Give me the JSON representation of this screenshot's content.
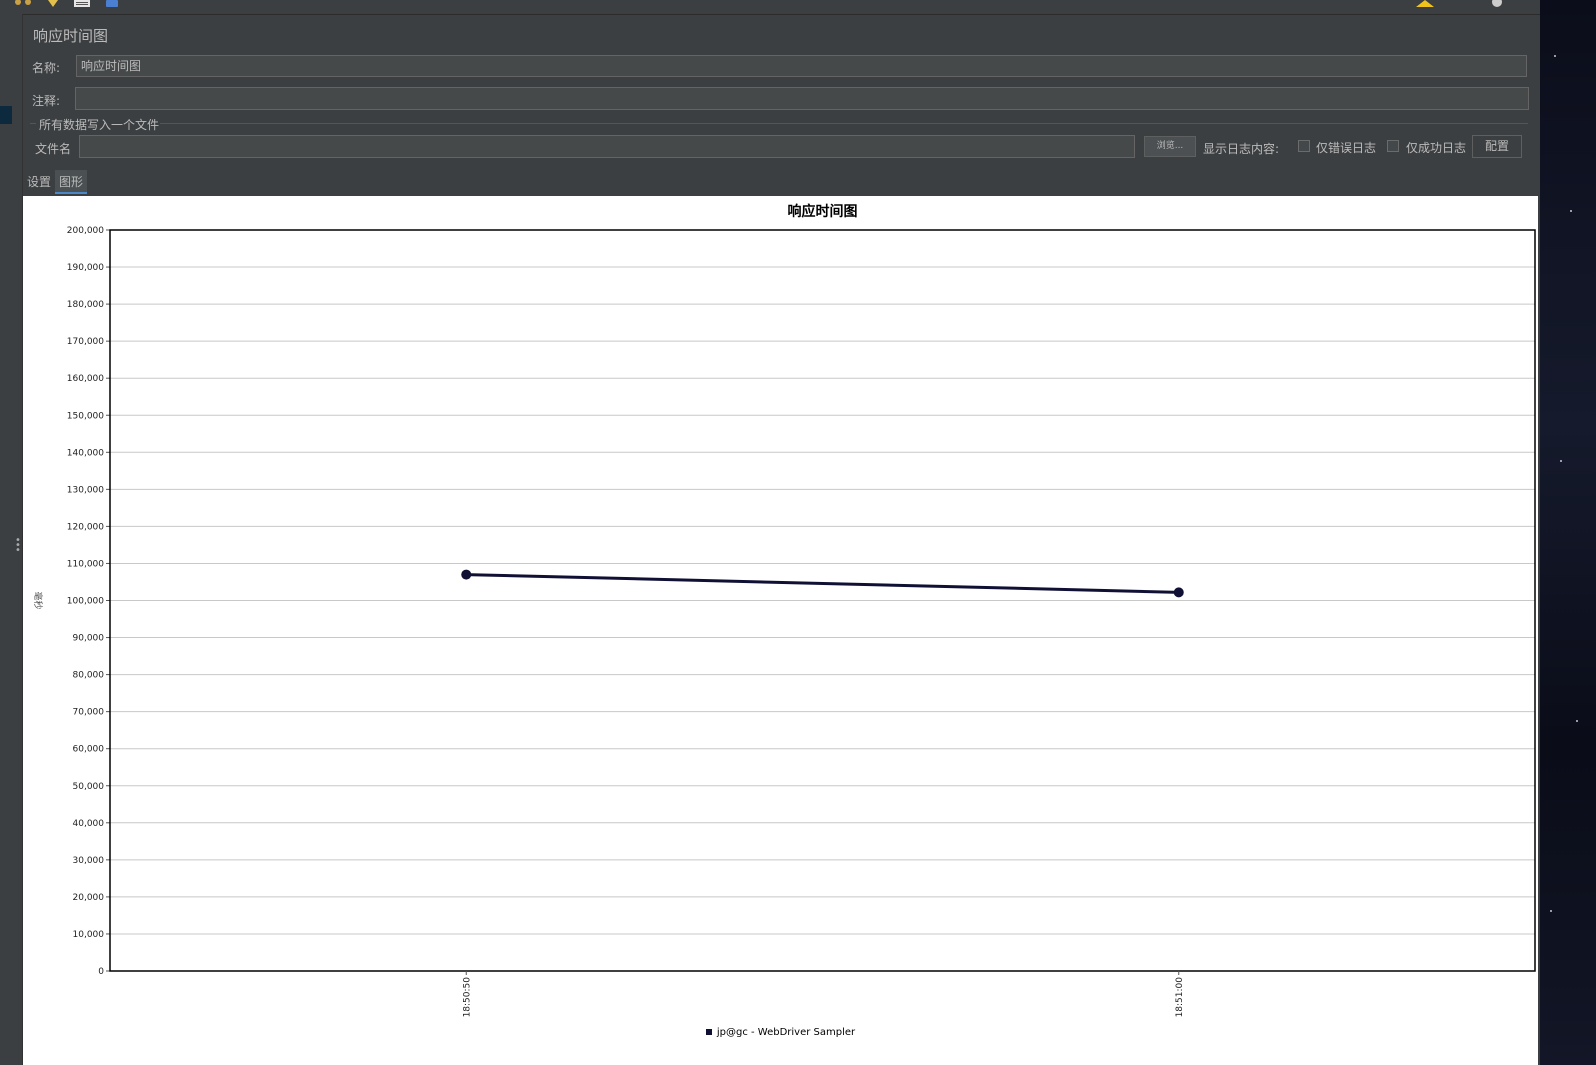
{
  "panel": {
    "title": "响应时间图",
    "name_label": "名称:",
    "name_value": "响应时间图",
    "comment_label": "注释:",
    "comment_value": "",
    "section_title": "所有数据写入一个文件",
    "filename_label": "文件名",
    "filename_value": "",
    "browse_label": "浏览...",
    "log_content_label": "显示日志内容:",
    "errors_only_label": "仅错误日志",
    "success_only_label": "仅成功日志",
    "configure_label": "配置"
  },
  "tabs": [
    {
      "label": "设置",
      "active": false
    },
    {
      "label": "图形",
      "active": true
    }
  ],
  "colors": {
    "series": "#101035",
    "panel_bg": "#3c3f41",
    "tab_accent": "#4a88c7"
  },
  "chart_data": {
    "type": "line",
    "title": "响应时间图",
    "xlabel": "",
    "ylabel": "毫秒",
    "ylim": [
      0,
      200000
    ],
    "ytick_step": 10000,
    "x": [
      "18:50:50",
      "18:51:00"
    ],
    "x_fraction": [
      0.25,
      0.75
    ],
    "series": [
      {
        "name": "jp@gc - WebDriver Sampler",
        "values": [
          107000,
          102200
        ]
      }
    ],
    "grid": true,
    "legend": "bottom"
  }
}
